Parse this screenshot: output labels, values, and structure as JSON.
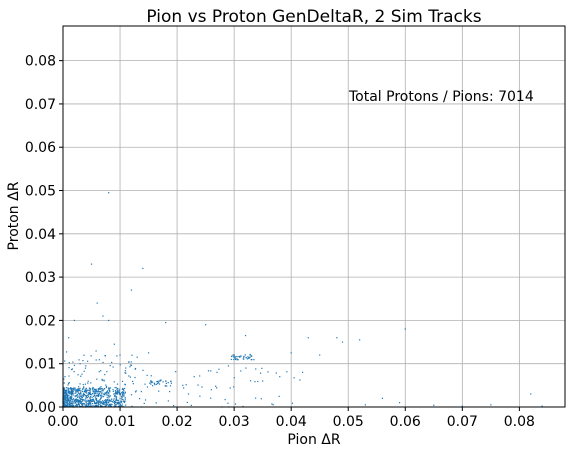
{
  "chart_data": {
    "type": "scatter",
    "title": "Pion vs Proton GenDeltaR, 2 Sim Tracks",
    "xlabel": "Pion ΔR",
    "ylabel": "Proton ΔR",
    "xlim": [
      0.0,
      0.088
    ],
    "ylim": [
      0.0,
      0.088
    ],
    "xticks": [
      "0.00",
      "0.01",
      "0.02",
      "0.03",
      "0.04",
      "0.05",
      "0.06",
      "0.07",
      "0.08"
    ],
    "yticks": [
      "0.00",
      "0.01",
      "0.02",
      "0.03",
      "0.04",
      "0.05",
      "0.06",
      "0.07",
      "0.08"
    ],
    "grid": true,
    "annotation": "Total Protons / Pions: 7014",
    "annotation_position": [
      0.05,
      0.07
    ],
    "series": [
      {
        "color": "#1f77b4",
        "x": [
          0.008,
          0.005,
          0.014,
          0.012,
          0.006,
          0.002,
          0.007,
          0.008,
          0.018,
          0.025,
          0.032,
          0.03,
          0.031,
          0.033,
          0.029,
          0.04,
          0.043,
          0.045,
          0.048,
          0.049,
          0.052,
          0.06,
          0.056,
          0.059,
          0.075,
          0.082,
          0.084,
          0.053,
          0.065,
          0.07,
          0.035,
          0.038,
          0.042,
          0.015,
          0.016,
          0.01,
          0.013,
          0.017,
          0.019,
          0.021,
          0.023,
          0.027,
          0.026,
          0.022,
          0.024,
          0.011,
          0.009,
          0.003,
          0.004,
          0.001
        ],
        "y": [
          0.0495,
          0.033,
          0.032,
          0.027,
          0.024,
          0.02,
          0.021,
          0.02,
          0.0195,
          0.019,
          0.0165,
          0.012,
          0.0115,
          0.0118,
          0.0095,
          0.0125,
          0.016,
          0.012,
          0.016,
          0.015,
          0.0155,
          0.018,
          0.002,
          0.001,
          0.0005,
          0.003,
          0.0002,
          0.0005,
          0.0004,
          0.0002,
          0.006,
          0.007,
          0.008,
          0.0125,
          0.0055,
          0.012,
          0.0115,
          0.006,
          0.0055,
          0.005,
          0.007,
          0.008,
          0.004,
          0.003,
          0.0025,
          0.009,
          0.0145,
          0.01,
          0.0095,
          0.016
        ]
      }
    ],
    "dense_cluster": {
      "x_range": [
        0.0,
        0.011
      ],
      "y_range": [
        0.0,
        0.0045
      ],
      "count": 850
    },
    "secondary_clusters": [
      {
        "x_range": [
          0.0295,
          0.0335
        ],
        "y_range": [
          0.0108,
          0.0122
        ],
        "count": 40
      },
      {
        "x_range": [
          0.015,
          0.019
        ],
        "y_range": [
          0.0048,
          0.0062
        ],
        "count": 30
      }
    ]
  }
}
